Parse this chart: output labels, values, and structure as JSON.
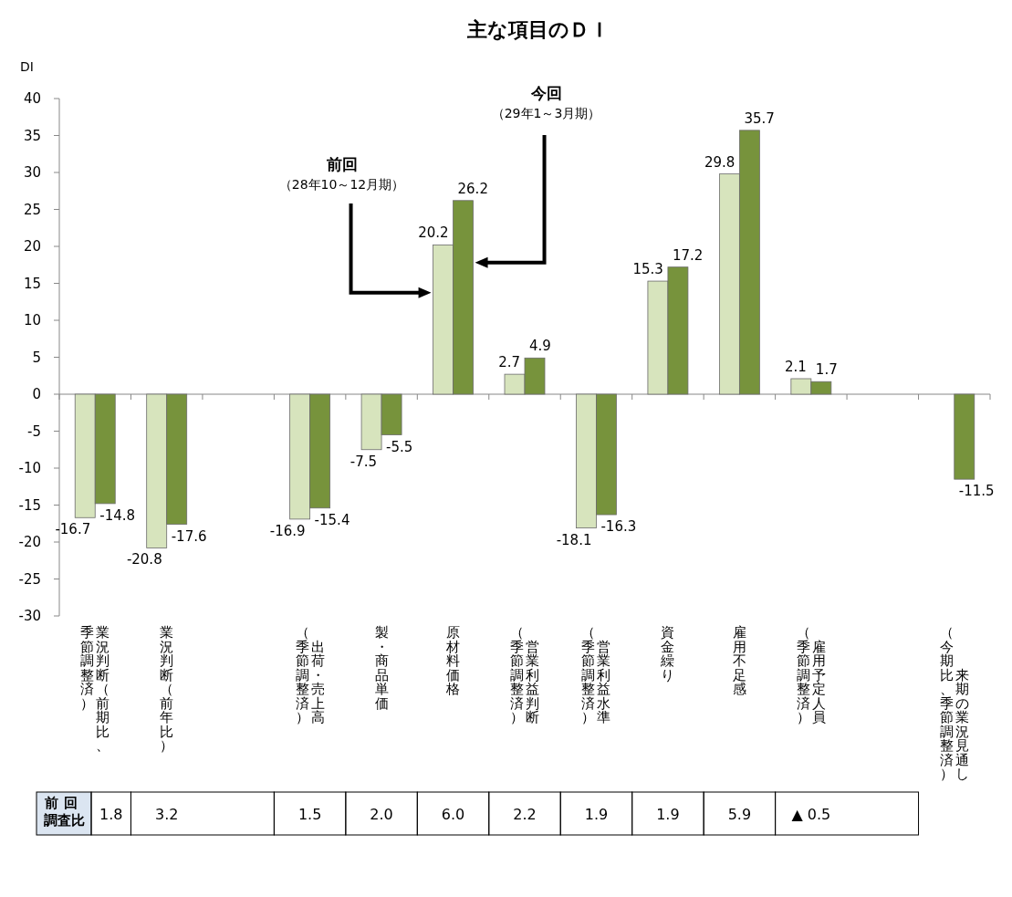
{
  "chart_data": {
    "type": "bar",
    "title": "主な項目のＤＩ",
    "ylabel": "DI",
    "categories": [
      "業況判断（前期比、季節調整済）",
      "業況判断（前年比）",
      null,
      "出荷・売上高（季節調整済）",
      "製・商品単価",
      "原材料価格",
      "営業利益判断（季節調整済）",
      "営業利益水準（季節調整済）",
      "資金繰り",
      "雇用不足感",
      "雇用予定人員（季節調整済）",
      null,
      "来期の業況見通し（今期比、季節調整済）"
    ],
    "series": [
      {
        "color": "#d7e4bd",
        "values": [
          -16.7,
          -20.8,
          null,
          -16.9,
          -7.5,
          20.2,
          2.7,
          -18.1,
          15.3,
          29.8,
          2.1,
          null,
          null
        ]
      },
      {
        "color": "#77933c",
        "values": [
          -14.8,
          -17.6,
          null,
          -15.4,
          -5.5,
          26.2,
          4.9,
          -16.3,
          17.2,
          35.7,
          1.7,
          null,
          -11.5
        ]
      }
    ],
    "ylim": [
      -30,
      40
    ],
    "yticks": [
      -30,
      -25,
      -20,
      -15,
      -10,
      -5,
      0,
      5,
      10,
      15,
      20,
      25,
      30,
      35,
      40
    ],
    "data_labels": true,
    "annotations": [
      "前回（28年10～12月期）",
      "今回（29年1～3月期）",
      "前回調査比",
      "1.8",
      "3.2",
      "1.5",
      "2.0",
      "6.0",
      "2.2",
      "1.9",
      "1.9",
      "5.9",
      "▲ 0.5"
    ]
  }
}
